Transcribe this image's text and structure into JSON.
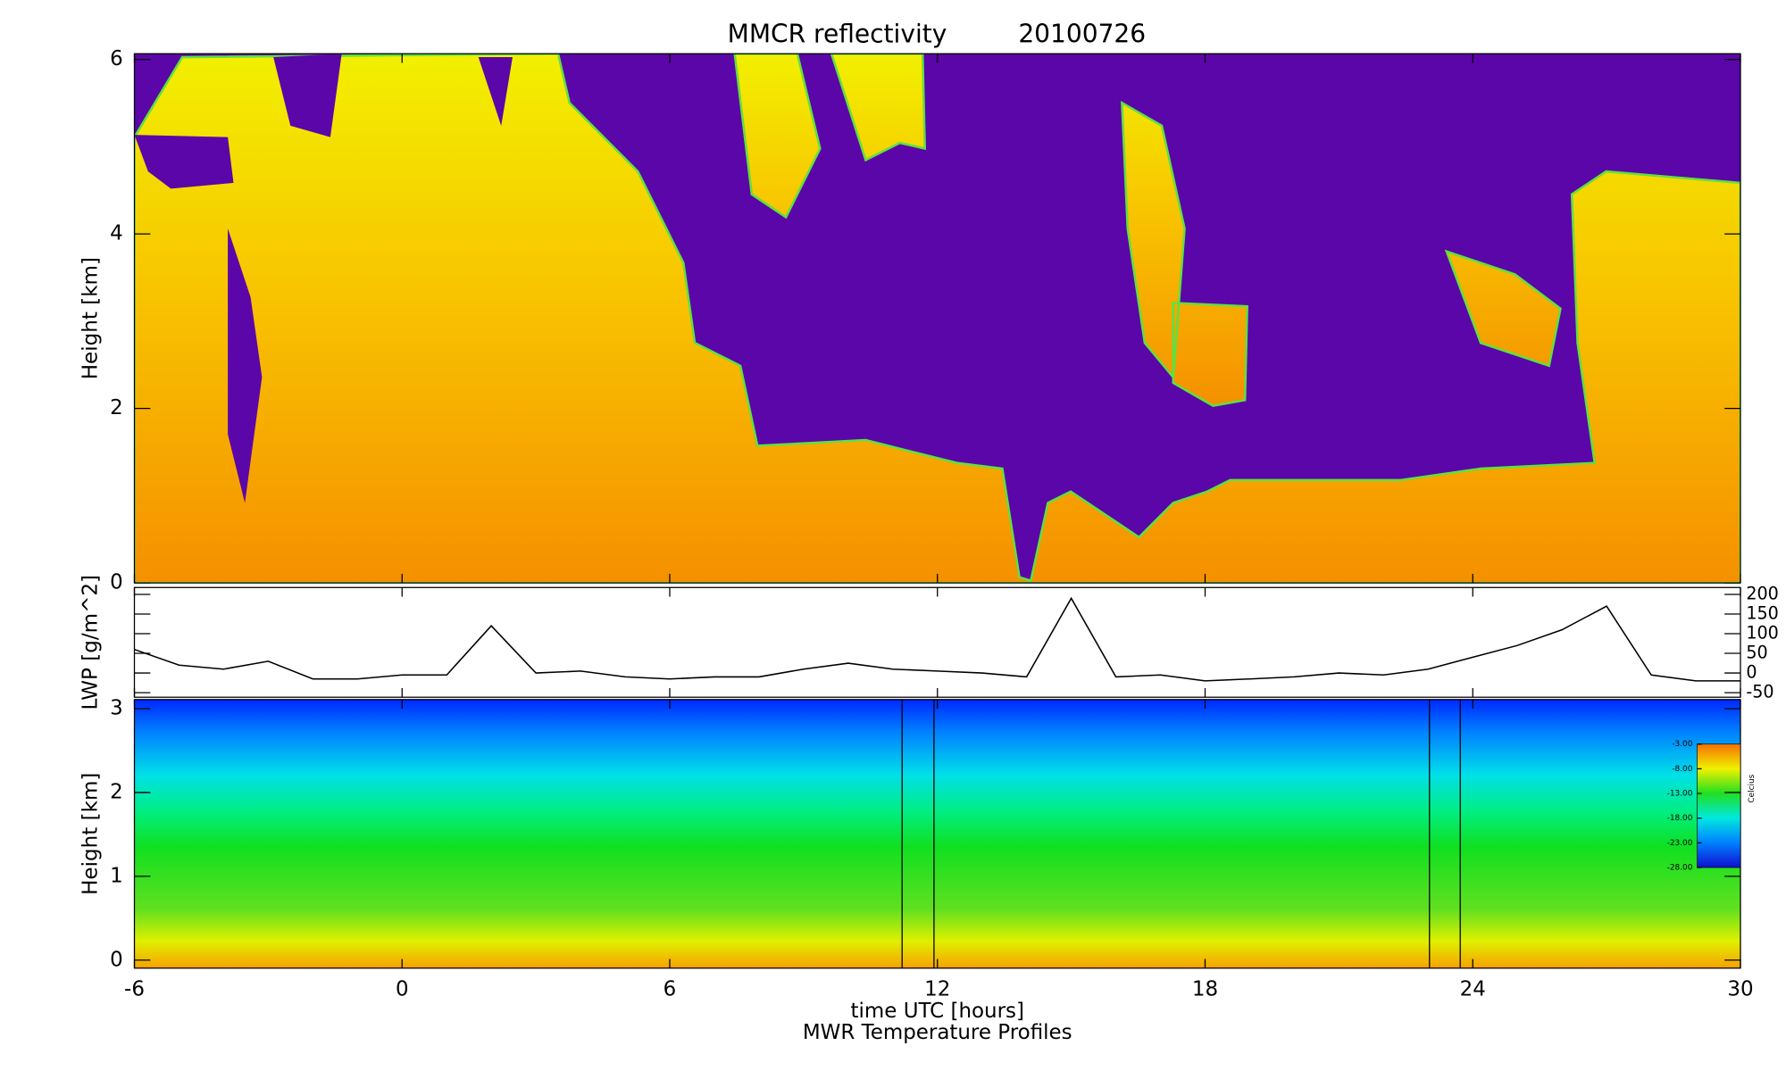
{
  "chart_data": [
    {
      "type": "heatmap",
      "title": "MMCR reflectivity",
      "date": "20100726",
      "ylabel": "Height [km]",
      "xlim": [
        -6,
        30
      ],
      "ylim": [
        0,
        6
      ],
      "yticks": [
        0,
        2,
        4,
        6
      ]
    },
    {
      "type": "line",
      "ylabel": "LWP [g/m^2]",
      "xlim": [
        -6,
        30
      ],
      "y2lim": [
        -50,
        200
      ],
      "y2ticks": [
        -50,
        0,
        50,
        100,
        150,
        200
      ],
      "x": [
        -6,
        -5,
        -4,
        -3,
        -2,
        -1,
        0,
        1,
        2,
        3,
        4,
        5,
        6,
        7,
        8,
        9,
        10,
        11,
        12,
        13,
        14,
        15,
        16,
        17,
        18,
        19,
        20,
        21,
        22,
        23,
        24,
        25,
        26,
        27,
        28,
        29,
        30
      ],
      "series": [
        {
          "color": "#000000",
          "axis": "y2",
          "values": [
            60,
            20,
            10,
            30,
            -15,
            -15,
            -5,
            -5,
            120,
            0,
            5,
            -10,
            -15,
            -10,
            -10,
            10,
            25,
            10,
            5,
            0,
            -10,
            190,
            -10,
            -5,
            -20,
            -15,
            -10,
            0,
            -5,
            10,
            40,
            70,
            110,
            170,
            -5,
            -20,
            -20
          ]
        }
      ]
    },
    {
      "type": "heatmap",
      "ylabel": "Height [km]",
      "xlabel": "time UTC [hours]",
      "footer": "MWR Temperature Profiles",
      "xlim": [
        -6,
        30
      ],
      "xticks": [
        -6,
        0,
        6,
        12,
        18,
        24,
        30
      ],
      "ylim": [
        0,
        3
      ],
      "yticks": [
        0,
        1,
        2,
        3
      ],
      "colorbar": {
        "label": "Celcius",
        "lim": [
          -28,
          -3
        ],
        "ticks": [
          {
            "value": -3,
            "label": "-3.00"
          },
          {
            "value": -8,
            "label": "-8.00"
          },
          {
            "value": -13,
            "label": "-13.00"
          },
          {
            "value": -18,
            "label": "-18.00"
          },
          {
            "value": -23,
            "label": "-23.00"
          },
          {
            "value": -28,
            "label": "-28.00"
          }
        ]
      }
    }
  ]
}
